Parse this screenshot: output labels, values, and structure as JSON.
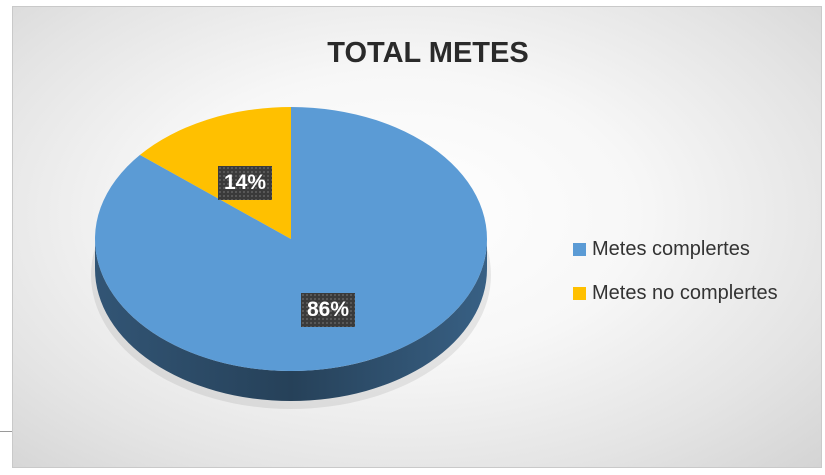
{
  "chart_data": {
    "type": "pie",
    "title": "TOTAL METES",
    "categories": [
      "Metes complertes",
      "Metes no complertes"
    ],
    "values": [
      86,
      14
    ],
    "data_labels": [
      "86%",
      "14%"
    ],
    "colors": [
      "#5b9bd5",
      "#ffc000"
    ],
    "legend_position": "right",
    "style": "3d"
  }
}
